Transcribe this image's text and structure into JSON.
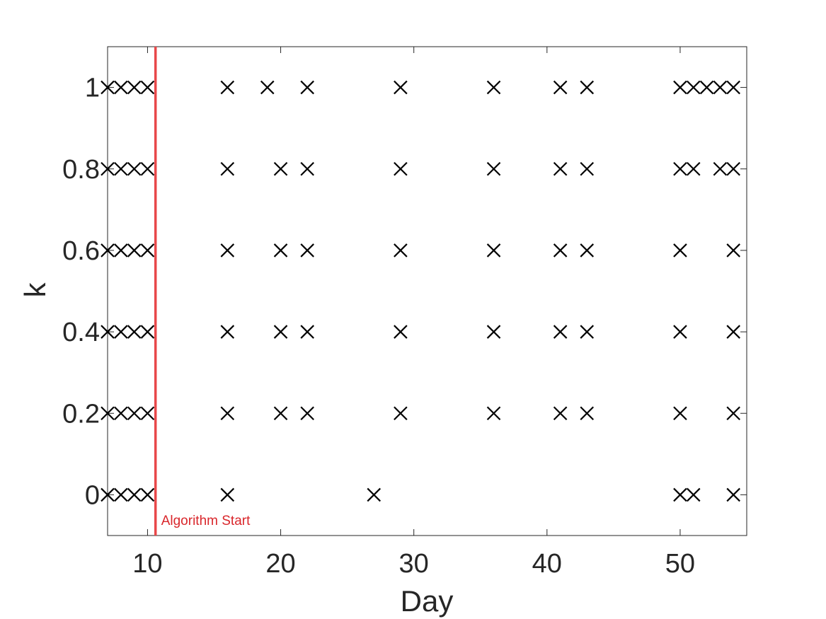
{
  "chart_data": {
    "type": "scatter",
    "xlabel": "Day",
    "ylabel": "k",
    "xlim": [
      7,
      55
    ],
    "ylim": [
      -0.1,
      1.1
    ],
    "xticks": [
      10,
      20,
      30,
      40,
      50
    ],
    "yticks": [
      0,
      0.2,
      0.4,
      0.6,
      0.8,
      1
    ],
    "ytick_labels": [
      "0",
      "0.2",
      "0.4",
      "0.6",
      "0.8",
      "1"
    ],
    "grid": false,
    "marker": "x",
    "marker_color": "#000000",
    "series": [
      {
        "points": [
          [
            7,
            1
          ],
          [
            8,
            1
          ],
          [
            9,
            1
          ],
          [
            10,
            1
          ],
          [
            16,
            1
          ],
          [
            19,
            1
          ],
          [
            22,
            1
          ],
          [
            29,
            1
          ],
          [
            36,
            1
          ],
          [
            41,
            1
          ],
          [
            43,
            1
          ],
          [
            50,
            1
          ],
          [
            51,
            1
          ],
          [
            52,
            1
          ],
          [
            53,
            1
          ],
          [
            54,
            1
          ],
          [
            7,
            0.8
          ],
          [
            8,
            0.8
          ],
          [
            9,
            0.8
          ],
          [
            10,
            0.8
          ],
          [
            16,
            0.8
          ],
          [
            20,
            0.8
          ],
          [
            22,
            0.8
          ],
          [
            29,
            0.8
          ],
          [
            36,
            0.8
          ],
          [
            41,
            0.8
          ],
          [
            43,
            0.8
          ],
          [
            50,
            0.8
          ],
          [
            51,
            0.8
          ],
          [
            53,
            0.8
          ],
          [
            54,
            0.8
          ],
          [
            7,
            0.6
          ],
          [
            8,
            0.6
          ],
          [
            9,
            0.6
          ],
          [
            10,
            0.6
          ],
          [
            16,
            0.6
          ],
          [
            20,
            0.6
          ],
          [
            22,
            0.6
          ],
          [
            29,
            0.6
          ],
          [
            36,
            0.6
          ],
          [
            41,
            0.6
          ],
          [
            43,
            0.6
          ],
          [
            50,
            0.6
          ],
          [
            54,
            0.6
          ],
          [
            7,
            0.4
          ],
          [
            8,
            0.4
          ],
          [
            9,
            0.4
          ],
          [
            10,
            0.4
          ],
          [
            16,
            0.4
          ],
          [
            20,
            0.4
          ],
          [
            22,
            0.4
          ],
          [
            29,
            0.4
          ],
          [
            36,
            0.4
          ],
          [
            41,
            0.4
          ],
          [
            43,
            0.4
          ],
          [
            50,
            0.4
          ],
          [
            54,
            0.4
          ],
          [
            7,
            0.2
          ],
          [
            8,
            0.2
          ],
          [
            9,
            0.2
          ],
          [
            10,
            0.2
          ],
          [
            16,
            0.2
          ],
          [
            20,
            0.2
          ],
          [
            22,
            0.2
          ],
          [
            29,
            0.2
          ],
          [
            36,
            0.2
          ],
          [
            41,
            0.2
          ],
          [
            43,
            0.2
          ],
          [
            50,
            0.2
          ],
          [
            54,
            0.2
          ],
          [
            7,
            0
          ],
          [
            8,
            0
          ],
          [
            9,
            0
          ],
          [
            10,
            0
          ],
          [
            16,
            0
          ],
          [
            27,
            0
          ],
          [
            50,
            0
          ],
          [
            51,
            0
          ],
          [
            54,
            0
          ]
        ]
      }
    ],
    "annotations": [
      {
        "type": "vertical-line",
        "x": 10.6,
        "color": "#e8484a",
        "label": "Algorithm Start",
        "label_color": "#d9262b"
      }
    ]
  }
}
